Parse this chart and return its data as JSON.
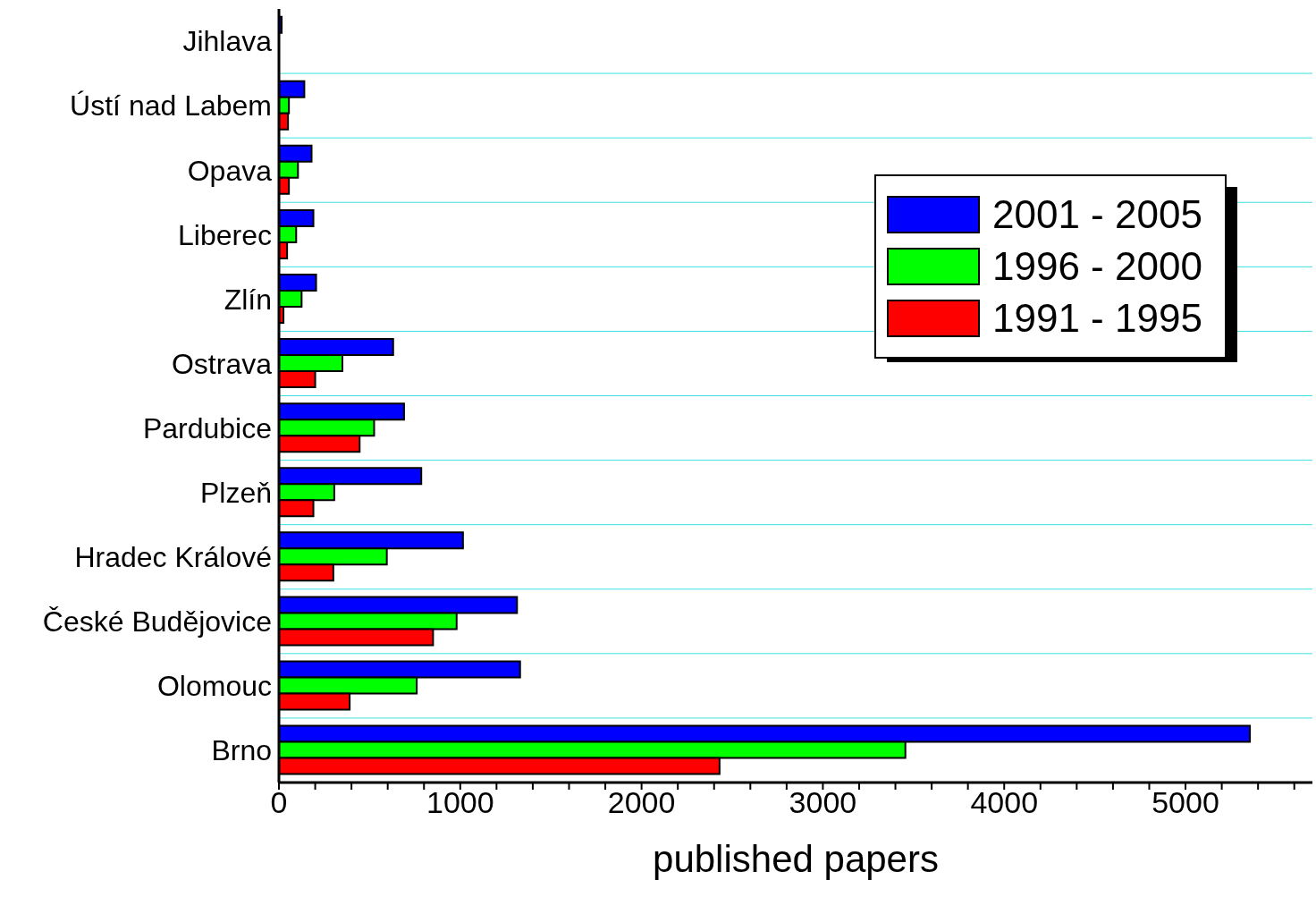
{
  "chart_data": {
    "type": "bar",
    "orientation": "horizontal",
    "xlabel": "published papers",
    "categories": [
      "Jihlava",
      "Ústí nad Labem",
      "Opava",
      "Liberec",
      "Zlín",
      "Ostrava",
      "Pardubice",
      "Plzeň",
      "Hradec Králové",
      "České Budějovice",
      "Olomouc",
      "Brno"
    ],
    "series": [
      {
        "name": "2001 - 2005",
        "color": "#0000ff",
        "values": [
          15,
          140,
          180,
          190,
          205,
          630,
          690,
          785,
          1015,
          1313,
          1330,
          5355
        ]
      },
      {
        "name": "1996 - 2000",
        "color": "#00ff00",
        "values": [
          null,
          55,
          105,
          95,
          125,
          350,
          525,
          305,
          595,
          980,
          760,
          3455
        ]
      },
      {
        "name": "1991 - 1995",
        "color": "#ff0000",
        "values": [
          null,
          50,
          55,
          45,
          25,
          200,
          445,
          190,
          300,
          850,
          390,
          2430
        ]
      }
    ],
    "xlim": [
      0,
      5700
    ],
    "xticks": [
      0,
      {
        "value": 200,
        "label": null
      },
      {
        "value": 400,
        "label": null
      },
      {
        "value": 600,
        "label": null
      },
      {
        "value": 800,
        "label": null
      },
      1000,
      {
        "value": 1200,
        "label": null
      },
      {
        "value": 1400,
        "label": null
      },
      {
        "value": 1600,
        "label": null
      },
      {
        "value": 1800,
        "label": null
      },
      2000,
      {
        "value": 2200,
        "label": null
      },
      {
        "value": 2400,
        "label": null
      },
      {
        "value": 2600,
        "label": null
      },
      {
        "value": 2800,
        "label": null
      },
      3000,
      {
        "value": 3200,
        "label": null
      },
      {
        "value": 3400,
        "label": null
      },
      {
        "value": 3600,
        "label": null
      },
      {
        "value": 3800,
        "label": null
      },
      4000,
      {
        "value": 4200,
        "label": null
      },
      {
        "value": 4400,
        "label": null
      },
      {
        "value": 4600,
        "label": null
      },
      {
        "value": 4800,
        "label": null
      },
      5000,
      {
        "value": 5200,
        "label": null
      },
      {
        "value": 5400,
        "label": null
      },
      {
        "value": 5600,
        "label": null
      }
    ],
    "grid": "y",
    "legend": "top right"
  }
}
